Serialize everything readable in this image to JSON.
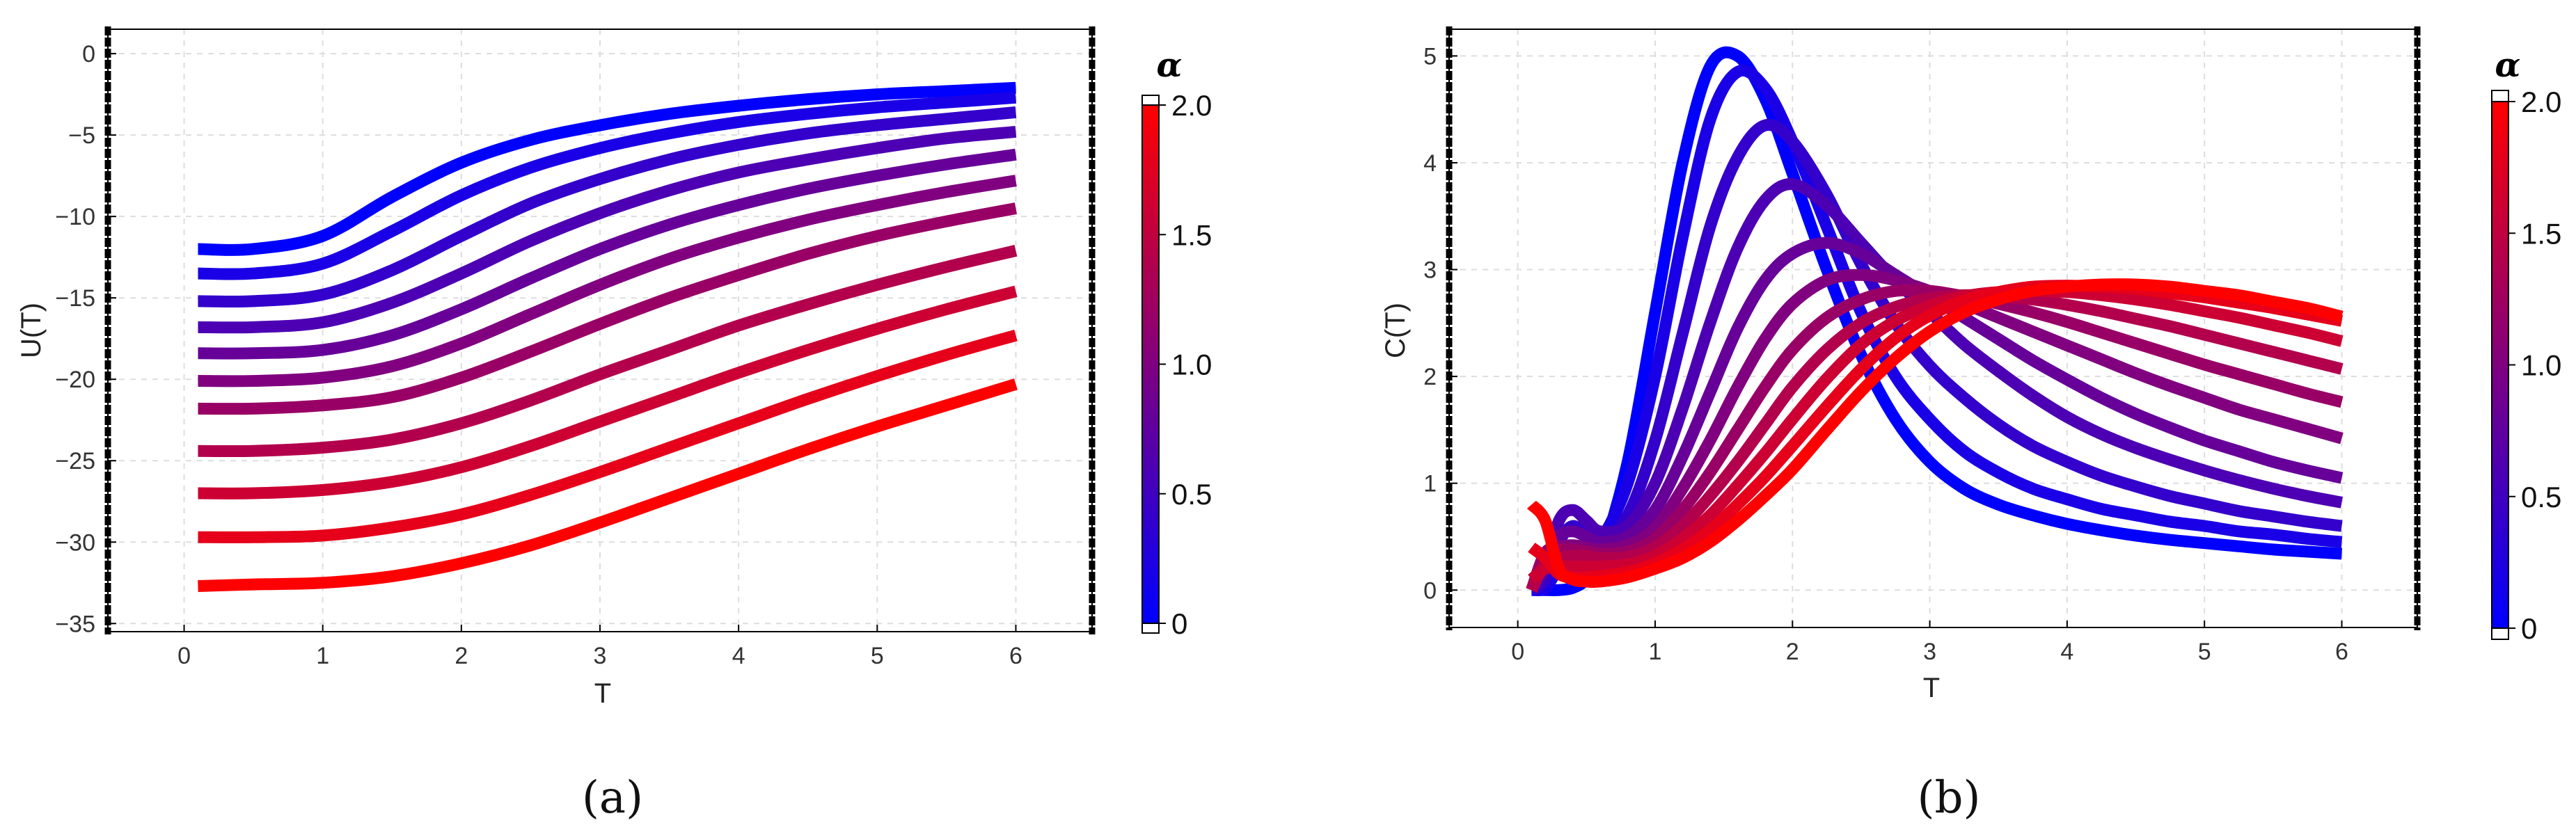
{
  "colors": {
    "low": "#0000ff",
    "high": "#ff0000"
  },
  "chart_data": [
    {
      "type": "line",
      "panel": "(a)",
      "xlabel": "T",
      "ylabel": "U(T)",
      "xlim": [
        -0.55,
        6.55
      ],
      "ylim": [
        -35.5,
        1.5
      ],
      "xticks": [
        0,
        1,
        2,
        3,
        4,
        5,
        6
      ],
      "yticks": [
        0,
        -5,
        -10,
        -15,
        -20,
        -25,
        -30,
        -35
      ],
      "grid": true,
      "legend": {
        "type": "colorbar",
        "title": "α",
        "range": [
          0,
          2.0
        ],
        "ticks": [
          "0",
          "0.5",
          "1.0",
          "1.5",
          "2.0"
        ]
      },
      "x": [
        0.1,
        0.5,
        1.0,
        1.5,
        2.0,
        2.5,
        3.0,
        3.5,
        4.0,
        4.5,
        5.0,
        5.5,
        6.0
      ],
      "series": [
        {
          "alpha": 0.0,
          "values": [
            -12.0,
            -12.0,
            -11.2,
            -8.8,
            -6.7,
            -5.3,
            -4.4,
            -3.7,
            -3.2,
            -2.8,
            -2.5,
            -2.3,
            -2.1
          ]
        },
        {
          "alpha": 0.2,
          "values": [
            -13.5,
            -13.5,
            -12.9,
            -10.9,
            -8.7,
            -7.0,
            -5.8,
            -4.9,
            -4.2,
            -3.7,
            -3.3,
            -3.0,
            -2.7
          ]
        },
        {
          "alpha": 0.4,
          "values": [
            -15.2,
            -15.2,
            -14.8,
            -13.3,
            -11.2,
            -9.2,
            -7.7,
            -6.5,
            -5.6,
            -4.9,
            -4.4,
            -4.0,
            -3.6
          ]
        },
        {
          "alpha": 0.6,
          "values": [
            -16.8,
            -16.8,
            -16.5,
            -15.3,
            -13.5,
            -11.5,
            -9.8,
            -8.4,
            -7.3,
            -6.5,
            -5.8,
            -5.2,
            -4.8
          ]
        },
        {
          "alpha": 0.8,
          "values": [
            -18.4,
            -18.4,
            -18.2,
            -17.3,
            -15.7,
            -13.8,
            -12.0,
            -10.5,
            -9.3,
            -8.3,
            -7.5,
            -6.8,
            -6.2
          ]
        },
        {
          "alpha": 1.0,
          "values": [
            -20.1,
            -20.1,
            -19.9,
            -19.2,
            -17.8,
            -16.0,
            -14.2,
            -12.6,
            -11.3,
            -10.2,
            -9.3,
            -8.5,
            -7.8
          ]
        },
        {
          "alpha": 1.2,
          "values": [
            -21.8,
            -21.8,
            -21.6,
            -21.1,
            -19.9,
            -18.3,
            -16.6,
            -15.0,
            -13.6,
            -12.3,
            -11.2,
            -10.3,
            -9.5
          ]
        },
        {
          "alpha": 1.4,
          "values": [
            -24.4,
            -24.4,
            -24.2,
            -23.7,
            -22.7,
            -21.3,
            -19.7,
            -18.2,
            -16.7,
            -15.4,
            -14.2,
            -13.1,
            -12.1
          ]
        },
        {
          "alpha": 1.6,
          "values": [
            -27.0,
            -27.0,
            -26.8,
            -26.3,
            -25.4,
            -24.1,
            -22.6,
            -21.1,
            -19.6,
            -18.2,
            -16.9,
            -15.7,
            -14.6
          ]
        },
        {
          "alpha": 1.8,
          "values": [
            -29.7,
            -29.7,
            -29.6,
            -29.1,
            -28.3,
            -27.1,
            -25.7,
            -24.2,
            -22.7,
            -21.2,
            -19.8,
            -18.5,
            -17.3
          ]
        },
        {
          "alpha": 2.0,
          "values": [
            -32.7,
            -32.6,
            -32.5,
            -32.1,
            -31.3,
            -30.2,
            -28.8,
            -27.3,
            -25.8,
            -24.3,
            -22.9,
            -21.6,
            -20.3
          ]
        }
      ]
    },
    {
      "type": "line",
      "panel": "(b)",
      "xlabel": "T",
      "ylabel": "C(T)",
      "xlim": [
        -0.5,
        6.55
      ],
      "ylim": [
        -0.35,
        5.25
      ],
      "xticks": [
        0,
        1,
        2,
        3,
        4,
        5,
        6
      ],
      "yticks": [
        0,
        1,
        2,
        3,
        4,
        5
      ],
      "grid": true,
      "legend": {
        "type": "colorbar",
        "title": "α",
        "range": [
          0,
          2.0
        ],
        "ticks": [
          "0",
          "0.5",
          "1.0",
          "1.5",
          "2.0"
        ]
      },
      "x": [
        0.1,
        0.2,
        0.3,
        0.4,
        0.5,
        0.6,
        0.8,
        1.0,
        1.2,
        1.4,
        1.6,
        1.8,
        2.0,
        2.25,
        2.5,
        2.75,
        3.0,
        3.25,
        3.5,
        3.75,
        4.0,
        4.25,
        4.5,
        4.75,
        5.0,
        5.25,
        5.5,
        5.75,
        6.0
      ],
      "series": [
        {
          "alpha": 0.0,
          "values": [
            0.0,
            0.0,
            0.0,
            0.02,
            0.1,
            0.3,
            1.2,
            2.6,
            4.0,
            4.9,
            5.0,
            4.6,
            3.9,
            3.0,
            2.2,
            1.6,
            1.2,
            0.95,
            0.8,
            0.7,
            0.62,
            0.56,
            0.51,
            0.47,
            0.44,
            0.41,
            0.38,
            0.36,
            0.34
          ]
        },
        {
          "alpha": 0.2,
          "values": [
            0.0,
            0.02,
            0.2,
            0.25,
            0.3,
            0.45,
            1.0,
            2.0,
            3.3,
            4.4,
            4.85,
            4.7,
            4.2,
            3.4,
            2.6,
            2.0,
            1.6,
            1.3,
            1.1,
            0.95,
            0.85,
            0.76,
            0.7,
            0.64,
            0.6,
            0.55,
            0.52,
            0.48,
            0.45
          ]
        },
        {
          "alpha": 0.4,
          "values": [
            0.0,
            0.1,
            0.45,
            0.6,
            0.5,
            0.45,
            0.7,
            1.4,
            2.4,
            3.4,
            4.05,
            4.35,
            4.2,
            3.7,
            3.05,
            2.5,
            2.1,
            1.8,
            1.55,
            1.35,
            1.2,
            1.07,
            0.97,
            0.88,
            0.81,
            0.74,
            0.69,
            0.64,
            0.6
          ]
        },
        {
          "alpha": 0.6,
          "values": [
            0.0,
            0.2,
            0.65,
            0.75,
            0.65,
            0.55,
            0.6,
            1.0,
            1.7,
            2.5,
            3.2,
            3.65,
            3.8,
            3.6,
            3.25,
            2.9,
            2.6,
            2.3,
            2.05,
            1.82,
            1.62,
            1.46,
            1.33,
            1.22,
            1.12,
            1.03,
            0.95,
            0.88,
            0.82
          ]
        },
        {
          "alpha": 0.8,
          "values": [
            0.0,
            0.25,
            0.5,
            0.55,
            0.5,
            0.45,
            0.5,
            0.75,
            1.25,
            1.85,
            2.45,
            2.9,
            3.15,
            3.25,
            3.15,
            2.95,
            2.75,
            2.55,
            2.35,
            2.15,
            1.97,
            1.8,
            1.65,
            1.52,
            1.4,
            1.3,
            1.2,
            1.12,
            1.05
          ]
        },
        {
          "alpha": 1.0,
          "values": [
            0.0,
            0.3,
            0.4,
            0.42,
            0.4,
            0.38,
            0.42,
            0.58,
            0.95,
            1.4,
            1.9,
            2.35,
            2.68,
            2.9,
            2.95,
            2.9,
            2.8,
            2.68,
            2.55,
            2.42,
            2.29,
            2.16,
            2.03,
            1.91,
            1.8,
            1.69,
            1.6,
            1.51,
            1.42
          ]
        },
        {
          "alpha": 1.2,
          "values": [
            0.0,
            0.35,
            0.38,
            0.38,
            0.36,
            0.34,
            0.36,
            0.48,
            0.75,
            1.1,
            1.5,
            1.9,
            2.25,
            2.55,
            2.72,
            2.8,
            2.8,
            2.75,
            2.68,
            2.6,
            2.51,
            2.41,
            2.31,
            2.21,
            2.11,
            2.02,
            1.93,
            1.84,
            1.76
          ]
        },
        {
          "alpha": 1.4,
          "values": [
            0.0,
            0.25,
            0.3,
            0.32,
            0.32,
            0.3,
            0.31,
            0.4,
            0.6,
            0.88,
            1.2,
            1.55,
            1.9,
            2.25,
            2.5,
            2.65,
            2.73,
            2.76,
            2.75,
            2.72,
            2.67,
            2.61,
            2.54,
            2.47,
            2.39,
            2.31,
            2.23,
            2.15,
            2.07
          ]
        },
        {
          "alpha": 1.6,
          "values": [
            0.1,
            0.2,
            0.22,
            0.22,
            0.22,
            0.22,
            0.24,
            0.32,
            0.48,
            0.7,
            0.98,
            1.28,
            1.6,
            1.98,
            2.3,
            2.52,
            2.66,
            2.75,
            2.79,
            2.8,
            2.79,
            2.76,
            2.72,
            2.67,
            2.61,
            2.55,
            2.48,
            2.41,
            2.33
          ]
        },
        {
          "alpha": 1.8,
          "values": [
            0.4,
            0.3,
            0.15,
            0.12,
            0.12,
            0.13,
            0.17,
            0.25,
            0.38,
            0.56,
            0.8,
            1.06,
            1.35,
            1.72,
            2.07,
            2.36,
            2.57,
            2.71,
            2.79,
            2.84,
            2.85,
            2.84,
            2.82,
            2.78,
            2.74,
            2.69,
            2.64,
            2.58,
            2.52
          ]
        },
        {
          "alpha": 2.0,
          "values": [
            0.8,
            0.65,
            0.2,
            0.1,
            0.08,
            0.08,
            0.12,
            0.2,
            0.3,
            0.45,
            0.65,
            0.88,
            1.13,
            1.5,
            1.86,
            2.17,
            2.42,
            2.6,
            2.72,
            2.8,
            2.84,
            2.86,
            2.86,
            2.84,
            2.8,
            2.76,
            2.7,
            2.64,
            2.56
          ]
        }
      ]
    }
  ]
}
